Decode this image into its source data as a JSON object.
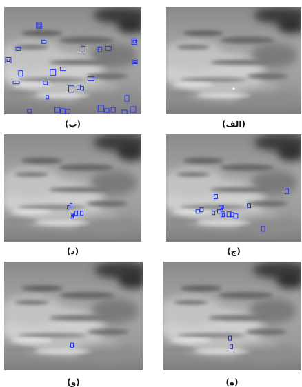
{
  "figure": {
    "panels": [
      {
        "id": "alef",
        "caption": "(الف)",
        "detections": "none"
      },
      {
        "id": "be",
        "caption": "(ب)",
        "detections": "many-scattered"
      },
      {
        "id": "jim",
        "caption": "(ج)",
        "detections": "cluster-with-outliers"
      },
      {
        "id": "dal",
        "caption": "(د)",
        "detections": "small-cluster"
      },
      {
        "id": "he",
        "caption": "(ه)",
        "detections": "pair"
      },
      {
        "id": "vav",
        "caption": "(و)",
        "detections": "single"
      }
    ],
    "colors": {
      "box": "#2233ee",
      "background": "#ffffff"
    }
  }
}
